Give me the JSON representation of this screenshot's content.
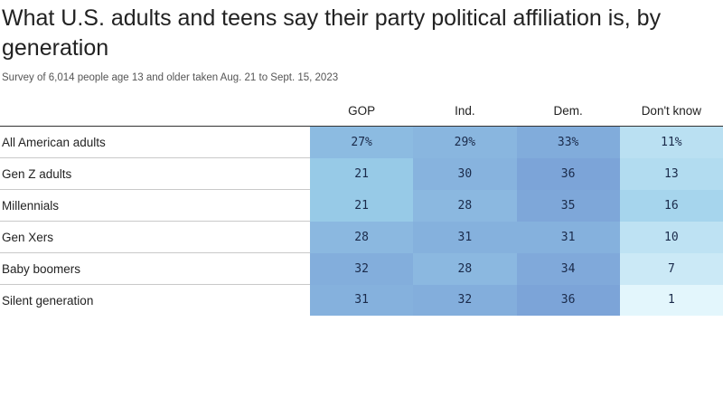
{
  "title": "What U.S. adults and teens say their party political affiliation is, by generation",
  "subtitle": "Survey of 6,014 people age 13 and older taken Aug. 21 to Sept. 15, 2023",
  "chart_data": {
    "type": "table",
    "title": "What U.S. adults and teens say their party political affiliation is, by generation",
    "subtitle": "Survey of 6,014 people age 13 and older taken Aug. 21 to Sept. 15, 2023",
    "columns": [
      "GOP",
      "Ind.",
      "Dem.",
      "Don't know"
    ],
    "rows": [
      {
        "label": "All American adults",
        "values": [
          27,
          29,
          33,
          11
        ],
        "display": [
          "27%",
          "29%",
          "33%",
          "11%"
        ]
      },
      {
        "label": "Gen Z adults",
        "values": [
          21,
          30,
          36,
          13
        ],
        "display": [
          "21",
          "30",
          "36",
          "13"
        ]
      },
      {
        "label": "Millennials",
        "values": [
          21,
          28,
          35,
          16
        ],
        "display": [
          "21",
          "28",
          "35",
          "16"
        ]
      },
      {
        "label": "Gen Xers",
        "values": [
          28,
          31,
          31,
          10
        ],
        "display": [
          "28",
          "31",
          "31",
          "10"
        ]
      },
      {
        "label": "Baby boomers",
        "values": [
          32,
          28,
          34,
          7
        ],
        "display": [
          "32",
          "28",
          "34",
          "7"
        ]
      },
      {
        "label": "Silent generation",
        "values": [
          31,
          32,
          36,
          1
        ],
        "display": [
          "31",
          "32",
          "36",
          "1"
        ]
      }
    ]
  },
  "colors": {
    "light": "#e3f6fc",
    "mid": "#9cd0ea",
    "dark": "#7ca4d8"
  }
}
